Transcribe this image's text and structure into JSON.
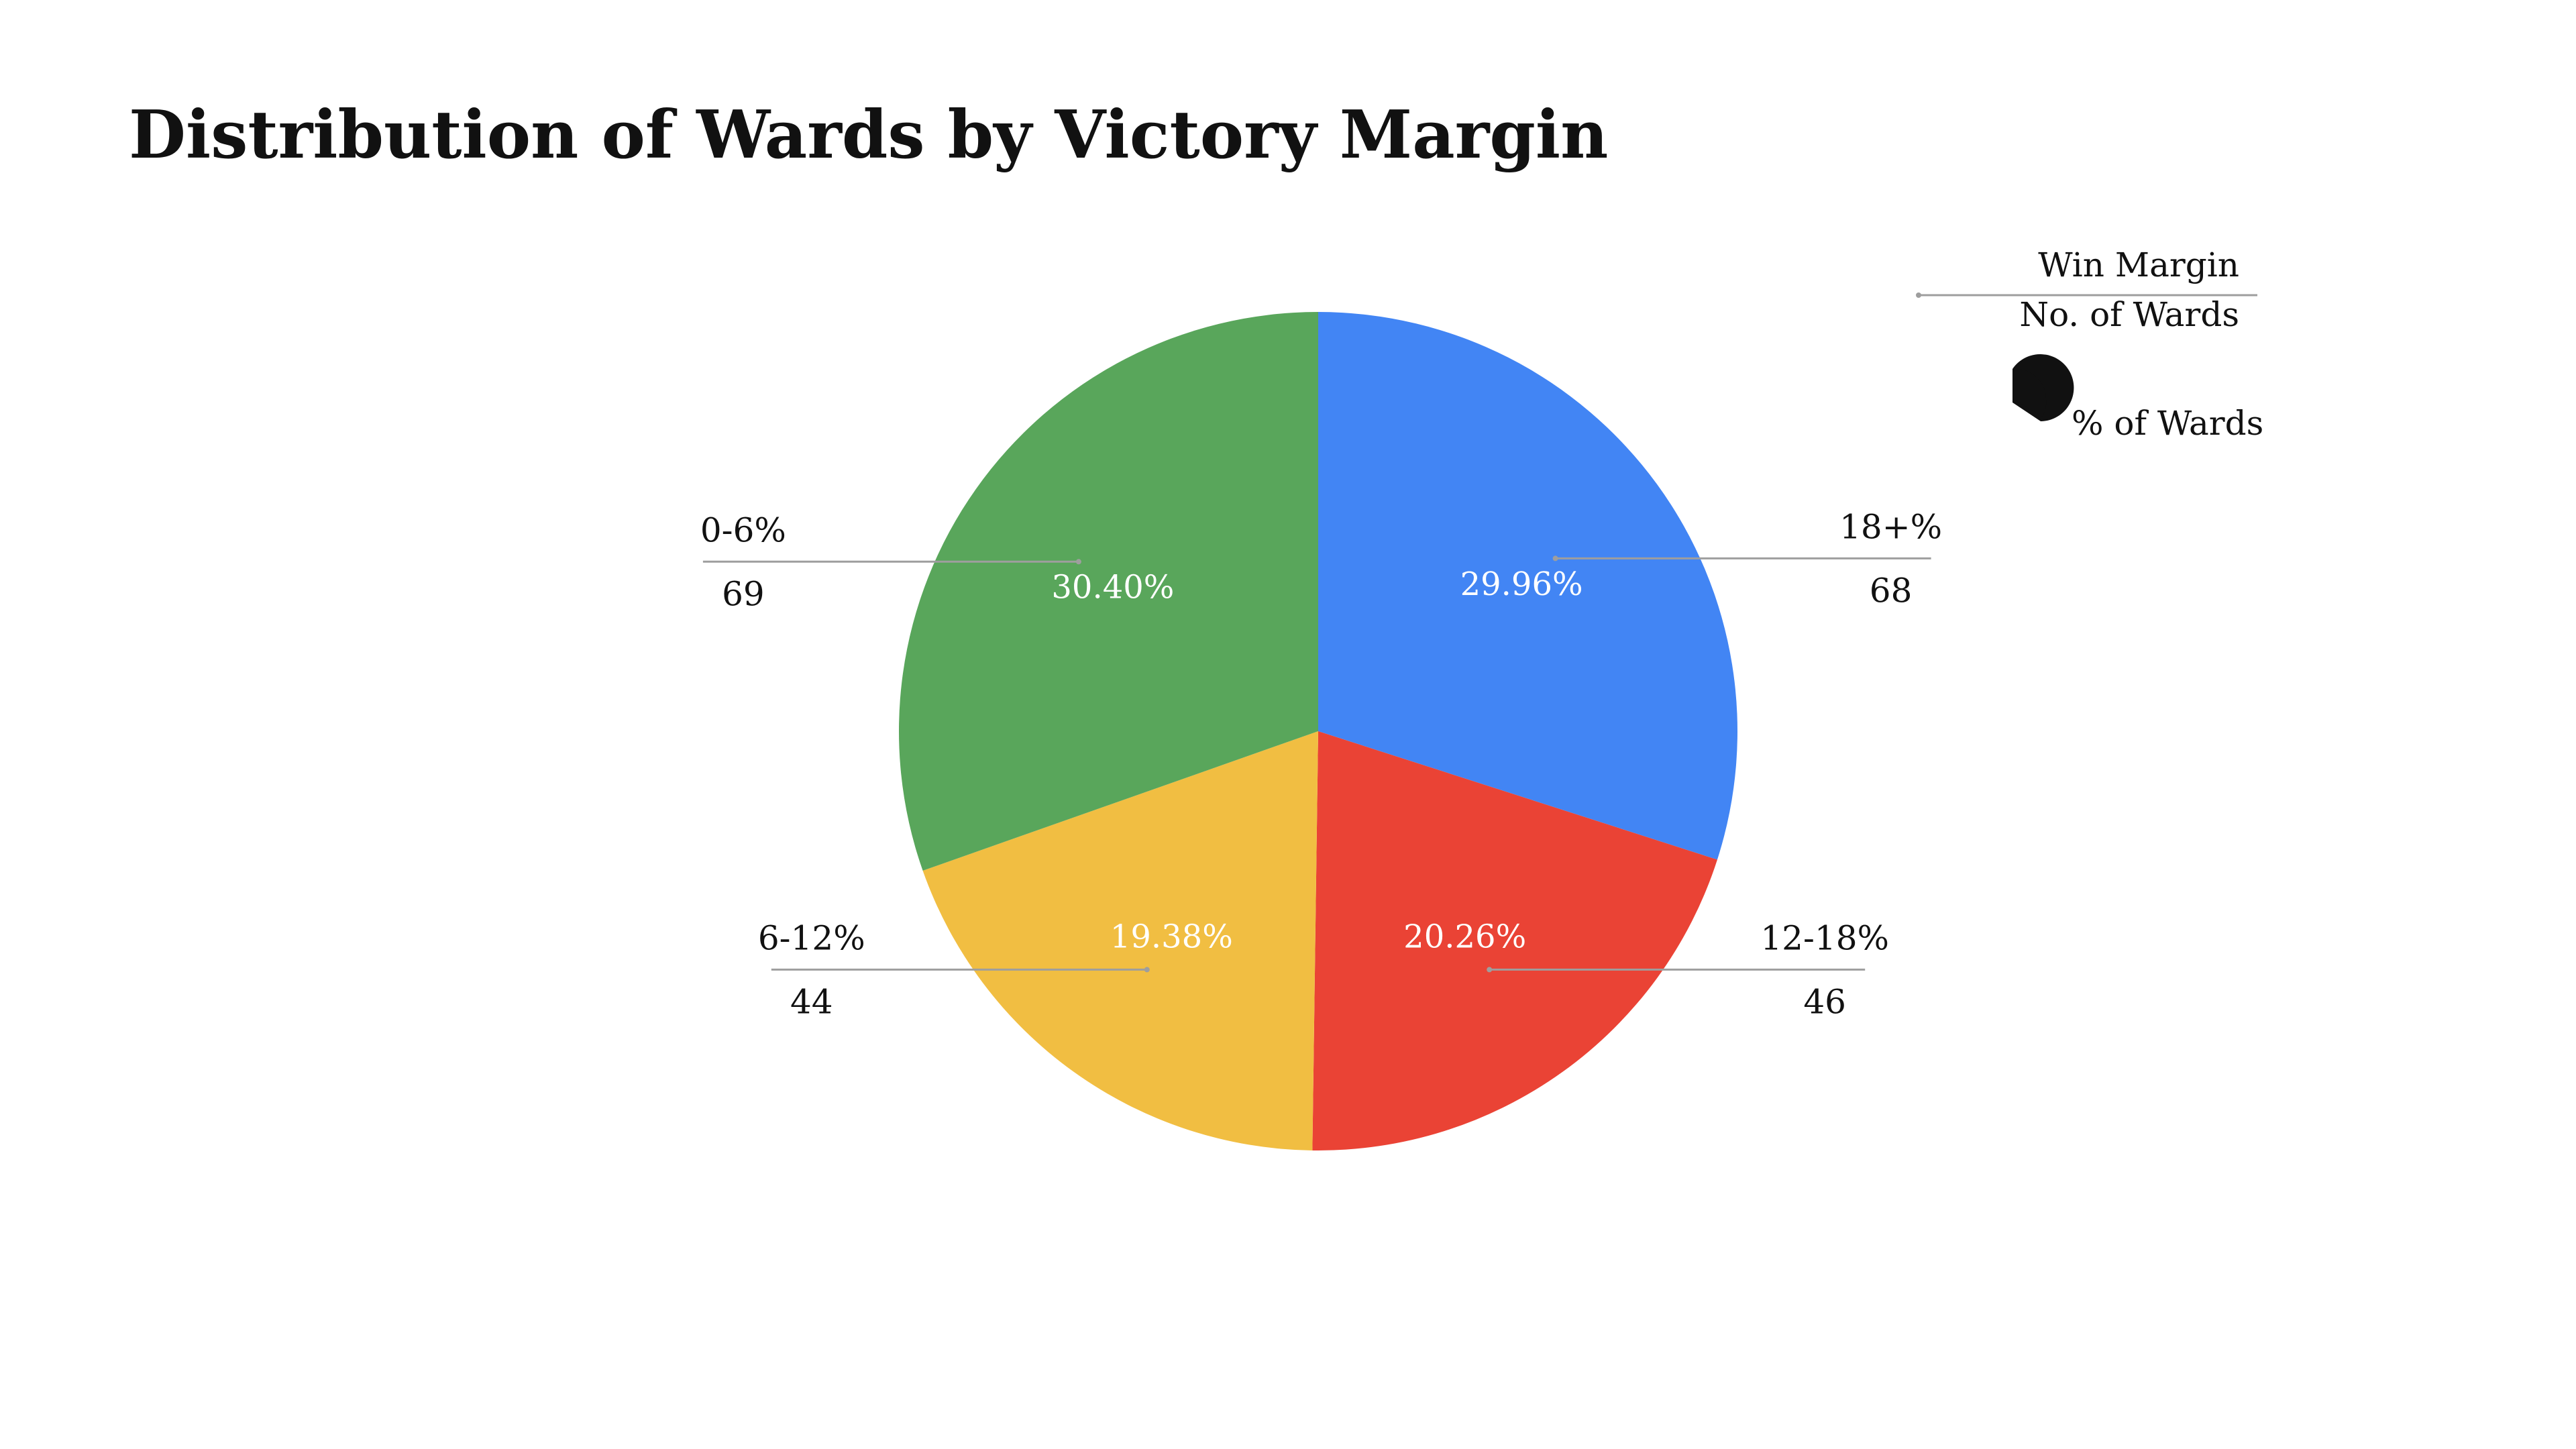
{
  "chart_data": {
    "type": "pie",
    "title": "Distribution of Wards by Victory Margin",
    "categories": [
      "18+%",
      "12-18%",
      "6-12%",
      "0-6%"
    ],
    "values": [
      68,
      46,
      44,
      69
    ],
    "percent_labels": [
      "29.96%",
      "20.26%",
      "19.38%",
      "30.40%"
    ],
    "value_labels": [
      "68",
      "46",
      "44",
      "69"
    ],
    "colors": [
      "#4285F4",
      "#EA4335",
      "#F1BE42",
      "#59A65B"
    ],
    "start_angle": "12 o'clock",
    "direction": "clockwise",
    "legend": {
      "placement": "top-right",
      "category_header": "Win Margin",
      "value_header": "No. of Wards",
      "percent_header": "% of Wards"
    }
  }
}
